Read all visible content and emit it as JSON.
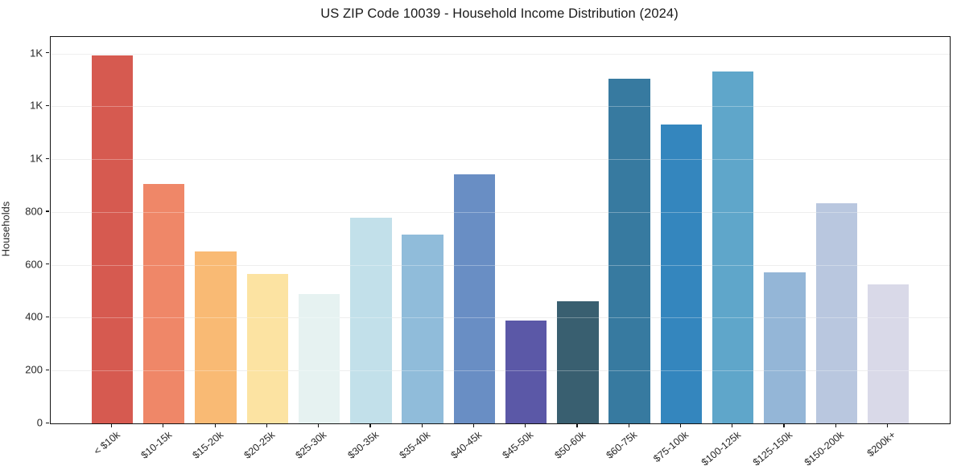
{
  "chart_data": {
    "type": "bar",
    "title": "US ZIP Code 10039 - Household Income Distribution (2024)",
    "xlabel": "",
    "ylabel": "Households",
    "categories": [
      "< $10k",
      "$10-15k",
      "$15-20k",
      "$20-25k",
      "$25-30k",
      "$30-35k",
      "$35-40k",
      "$40-45k",
      "$45-50k",
      "$50-60k",
      "$60-75k",
      "$75-100k",
      "$100-125k",
      "$125-150k",
      "$150-200k",
      "$200k+"
    ],
    "values": [
      1393,
      905,
      650,
      567,
      489,
      779,
      716,
      944,
      390,
      461,
      1304,
      1132,
      1333,
      571,
      832,
      525
    ],
    "bar_colors": [
      "#d65a50",
      "#ef8768",
      "#f9ba74",
      "#fce3a2",
      "#e6f2f1",
      "#c2e0ea",
      "#90bcda",
      "#698ec4",
      "#5b58a7",
      "#395f70",
      "#377aa0",
      "#3486be",
      "#5fa6ca",
      "#94b6d7",
      "#b9c7df",
      "#d9d9e8"
    ],
    "ylim": [
      0,
      1463
    ],
    "yticks": [
      {
        "value": 0,
        "label": "0"
      },
      {
        "value": 200,
        "label": "200"
      },
      {
        "value": 400,
        "label": "400"
      },
      {
        "value": 600,
        "label": "600"
      },
      {
        "value": 800,
        "label": "800"
      },
      {
        "value": 1000,
        "label": "1K"
      },
      {
        "value": 1200,
        "label": "1K"
      },
      {
        "value": 1400,
        "label": "1K"
      }
    ],
    "grid": "horizontal, light gray, drawn over bars",
    "legend": null,
    "x_tick_rotation_deg": 40
  }
}
